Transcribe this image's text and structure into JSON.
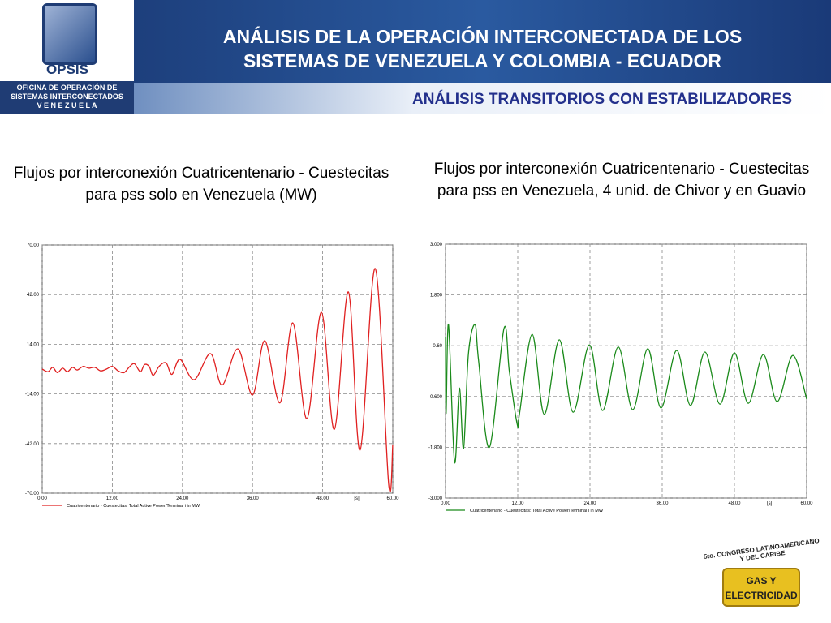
{
  "header": {
    "logo": "OPSIS",
    "org_lines": [
      "OFICINA DE OPERACIÓN DE",
      "SISTEMAS INTERCONECTADOS",
      "V E N E Z U E L A"
    ],
    "title_lines": [
      "ANÁLISIS DE LA OPERACIÓN INTERCONECTADA  DE LOS",
      "SISTEMAS DE VENEZUELA Y COLOMBIA - ECUADOR"
    ],
    "subtitle": "ANÁLISIS TRANSITORIOS CON ESTABILIZADORES"
  },
  "chart_data": [
    {
      "type": "line",
      "title": "Flujos por interconexión Cuatricentenario - Cuestecitas para pss solo en Venezuela (MW)",
      "xlabel": "[s]",
      "xlim": [
        0,
        60
      ],
      "xticks": [
        {
          "value": 0,
          "label": "0.00"
        },
        {
          "value": 12,
          "label": "12.00"
        },
        {
          "value": 24,
          "label": "24.00"
        },
        {
          "value": 36,
          "label": "36.00"
        },
        {
          "value": 48,
          "label": "48.00"
        },
        {
          "value": 60,
          "label": "60.00"
        }
      ],
      "ylim": [
        -70,
        70
      ],
      "yticks": [
        {
          "value": -70,
          "label": "-70.00"
        },
        {
          "value": -42,
          "label": "-42.00"
        },
        {
          "value": -14,
          "label": "-14.00"
        },
        {
          "value": 14,
          "label": "14.00"
        },
        {
          "value": 42,
          "label": "42.00"
        },
        {
          "value": 70,
          "label": "70.00"
        }
      ],
      "grid": true,
      "x": [
        0,
        1,
        1.8,
        2.6,
        3.5,
        4.3,
        5.2,
        6,
        7,
        8,
        9,
        10,
        11,
        12,
        13,
        14,
        15,
        15.8,
        16.8,
        17.5,
        18.3,
        19,
        20,
        21.2,
        22.2,
        23.6,
        26,
        28.8,
        30.8,
        33.5,
        36,
        38.1,
        40.7,
        42.9,
        45.3,
        47.8,
        50,
        52.4,
        54.4,
        57,
        59.3,
        60
      ],
      "series": [
        {
          "name": "Cuatricentenario - Cuestecitas: Total Active Power/Terminal i in MW",
          "color": "#e02020",
          "values": [
            0,
            -1.5,
            1,
            -2,
            0.5,
            -1.5,
            1,
            -0.5,
            1.5,
            0.5,
            1,
            -1,
            0,
            1.5,
            -1,
            -2,
            1.5,
            3,
            -1.5,
            2.5,
            1.5,
            -3.5,
            1.5,
            3.5,
            -3,
            5.5,
            -6,
            8.7,
            -9,
            11.4,
            -14.6,
            16,
            -19,
            26,
            -28,
            32,
            -34,
            43.5,
            -45.7,
            56.7,
            -65,
            -42.5
          ]
        }
      ]
    },
    {
      "type": "line",
      "title": "Flujos por interconexión Cuatricentenario - Cuestecitas para pss en Venezuela, 4 unid. de Chivor y en Guavio",
      "xlabel": "[s]",
      "xlim": [
        0,
        60
      ],
      "xticks": [
        {
          "value": 0,
          "label": "0.00"
        },
        {
          "value": 12,
          "label": "12.00"
        },
        {
          "value": 24,
          "label": "24.00"
        },
        {
          "value": 36,
          "label": "36.00"
        },
        {
          "value": 48,
          "label": "48.00"
        },
        {
          "value": 60,
          "label": "60.00"
        }
      ],
      "ylim": [
        -3,
        3
      ],
      "yticks": [
        {
          "value": -3,
          "label": "-3.000"
        },
        {
          "value": -1.8,
          "label": "-1.800"
        },
        {
          "value": -0.6,
          "label": "-0.600"
        },
        {
          "value": 0.6,
          "label": "0.60"
        },
        {
          "value": 1.8,
          "label": "1.800"
        },
        {
          "value": 3,
          "label": "3.000"
        }
      ],
      "grid": true,
      "x": [
        0,
        0.1,
        0.5,
        1.5,
        2.3,
        3,
        3.8,
        4.9,
        5.5,
        7.3,
        9.7,
        10.6,
        11.9,
        12.3,
        14.4,
        16.4,
        18.9,
        21.2,
        23.9,
        26.1,
        28.7,
        31.1,
        33.6,
        35.8,
        38.4,
        40.7,
        43.1,
        45.6,
        48,
        50.3,
        52.8,
        55.1,
        57.7,
        60
      ],
      "series": [
        {
          "name": "Cuatricentenario - Cuestecitas: Total Active Power/Terminal i in MW",
          "color": "#1a8a1a",
          "values": [
            0.8,
            -1,
            1.1,
            -2.15,
            -0.4,
            -1.83,
            0.4,
            1.1,
            0.24,
            -1.8,
            1,
            0,
            -1.25,
            -1,
            0.87,
            -1.02,
            0.74,
            -0.97,
            0.62,
            -0.93,
            0.57,
            -0.91,
            0.53,
            -0.87,
            0.49,
            -0.81,
            0.45,
            -0.78,
            0.43,
            -0.76,
            0.39,
            -0.72,
            0.37,
            -0.66
          ]
        }
      ]
    }
  ],
  "footer_logo": {
    "ring": "5to. CONGRESO LATINOAMERICANO Y DEL CARIBE",
    "lines": [
      "GAS Y",
      "ELECTRICIDAD"
    ]
  }
}
